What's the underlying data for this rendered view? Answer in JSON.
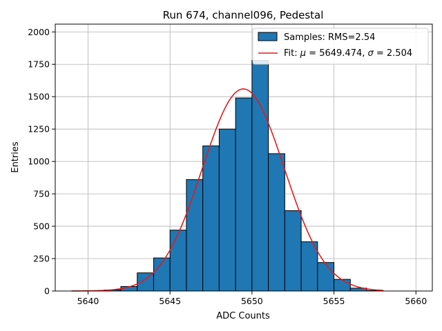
{
  "chart_data": {
    "type": "bar",
    "title": "Run 674, channel096, Pedestal",
    "xlabel": "ADC Counts",
    "ylabel": "Entries",
    "xlim": [
      5638.0,
      5661.0
    ],
    "ylim": [
      0,
      2060
    ],
    "xticks": [
      5640,
      5645,
      5650,
      5655,
      5660
    ],
    "yticks": [
      0,
      250,
      500,
      750,
      1000,
      1250,
      1500,
      1750,
      2000
    ],
    "ytick_labels": [
      "0",
      "250",
      "500",
      "750",
      "1000",
      "1250",
      "1500",
      "1750",
      "2000"
    ],
    "grid": true,
    "legend_position": "top-right",
    "histogram": {
      "name": "Samples: RMS=2.54",
      "color": "#1f77b4",
      "edgecolor": "#000000",
      "bin_edges": [
        5639,
        5640,
        5641,
        5642,
        5643,
        5644,
        5645,
        5646,
        5647,
        5648,
        5649,
        5650,
        5651,
        5652,
        5653,
        5654,
        5655,
        5656,
        5657,
        5658,
        5659,
        5660
      ],
      "counts": [
        0,
        0,
        8,
        35,
        140,
        255,
        470,
        860,
        1120,
        1250,
        1490,
        1780,
        1060,
        620,
        380,
        220,
        90,
        22,
        4,
        0,
        0
      ]
    },
    "fit": {
      "name_prefix": "Fit: ",
      "name_mu": "μ",
      "name_mid": " = 5649.474, ",
      "name_sigma": "σ",
      "name_suffix": " = 2.504",
      "color": "#e41a1c",
      "mu": 5649.474,
      "sigma": 2.504,
      "amplitude": 1560,
      "range": [
        5639,
        5658
      ]
    }
  }
}
